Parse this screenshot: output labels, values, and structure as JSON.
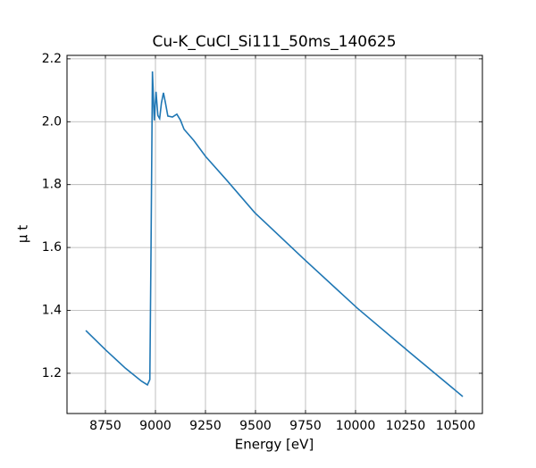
{
  "chart_data": {
    "type": "line",
    "title": "Cu-K_CuCl_Si111_50ms_140625",
    "xlabel": "Energy [eV]",
    "ylabel": "μ t",
    "x": [
      8652,
      8750,
      8850,
      8930,
      8960,
      8972,
      8978,
      8985,
      8994,
      9003,
      9012,
      9021,
      9030,
      9040,
      9050,
      9062,
      9085,
      9107,
      9125,
      9143,
      9192,
      9250,
      9348,
      9496,
      9741,
      10009,
      10277,
      10536
    ],
    "series": [
      {
        "name": "μ t",
        "color": "#1f77b4",
        "values": [
          1.336,
          1.275,
          1.216,
          1.175,
          1.163,
          1.18,
          1.6,
          2.16,
          2.004,
          2.095,
          2.02,
          2.01,
          2.06,
          2.092,
          2.06,
          2.018,
          2.015,
          2.024,
          2.005,
          1.976,
          1.94,
          1.89,
          1.82,
          1.711,
          1.564,
          1.407,
          1.263,
          1.126
        ]
      }
    ],
    "xlim": [
      8558,
      10634
    ],
    "ylim": [
      1.072,
      2.211
    ],
    "xticks": [
      8750,
      9000,
      9250,
      9500,
      9750,
      10000,
      10250,
      10500
    ],
    "yticks": [
      1.2,
      1.4,
      1.6,
      1.8,
      {
        "value": 2,
        "label": "2.0"
      },
      2.2
    ],
    "grid": true
  }
}
